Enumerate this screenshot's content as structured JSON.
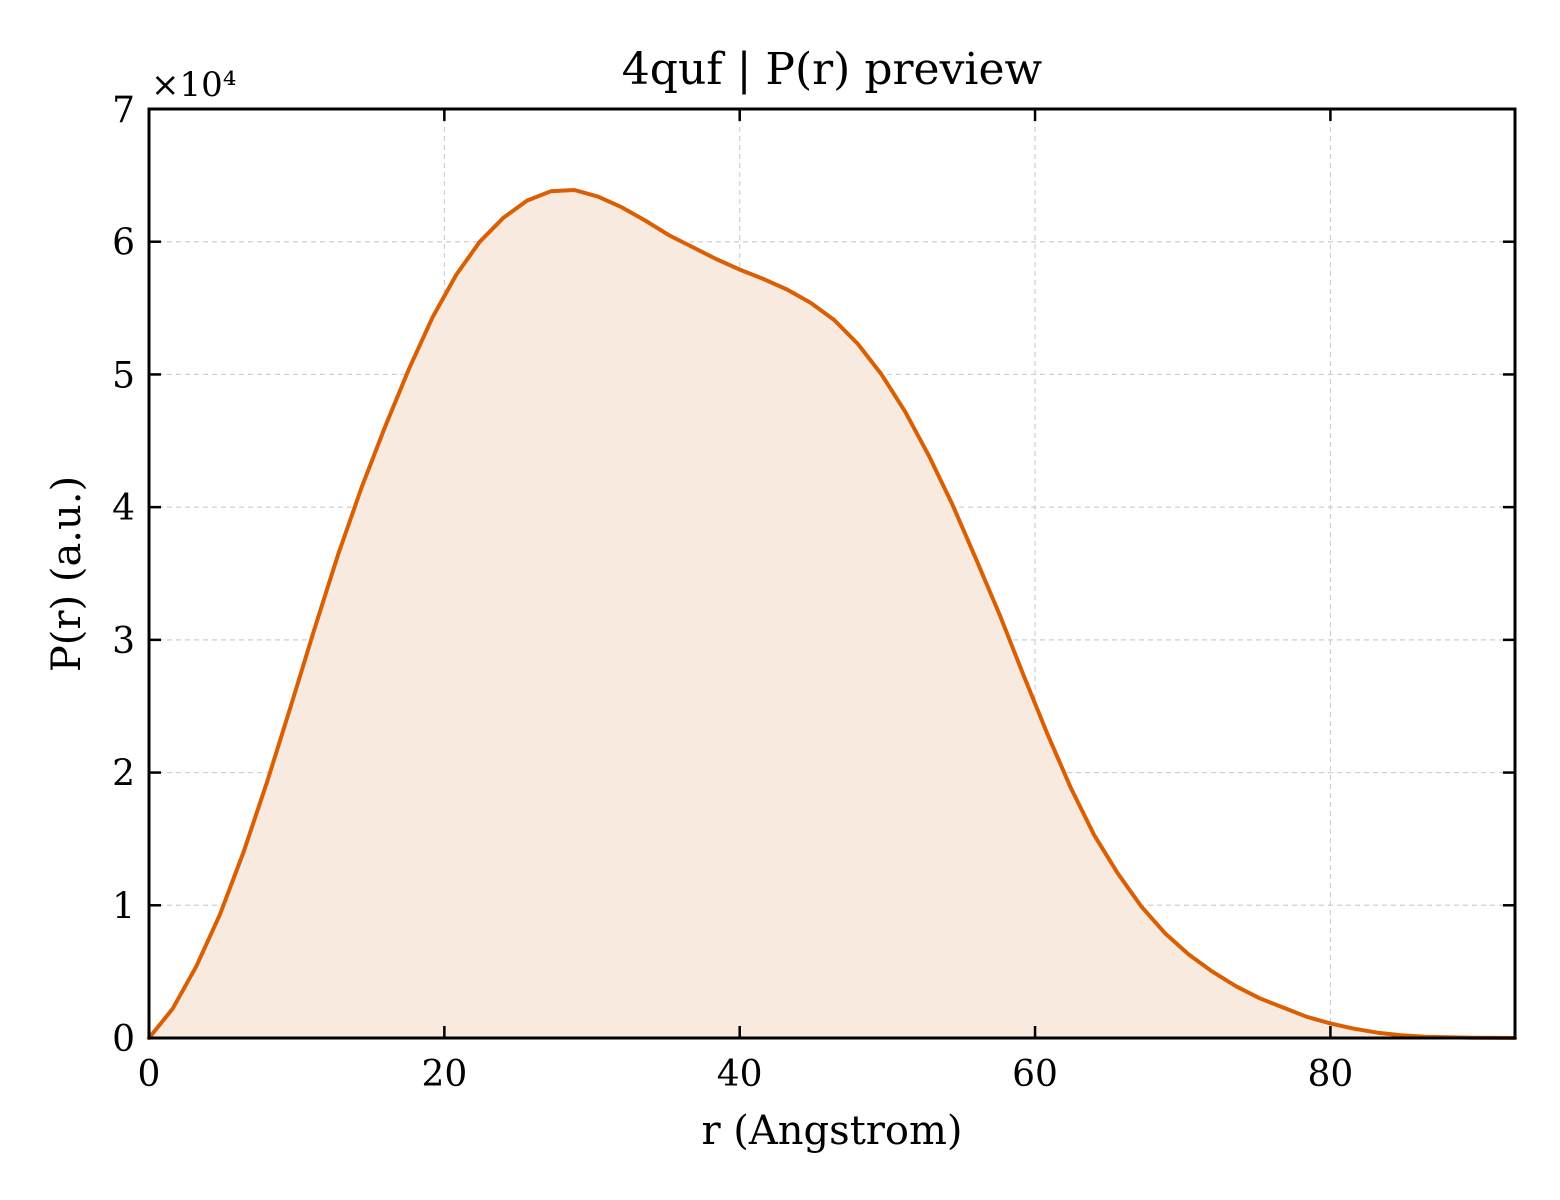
{
  "chart_data": {
    "type": "area",
    "title": "4quf | P(r) preview",
    "xlabel": "r (Angstrom)",
    "ylabel": "P(r) (a.u.)",
    "y_scale_label": "×10⁴",
    "xlim": [
      0,
      92.5
    ],
    "ylim": [
      0,
      70000
    ],
    "xticks": [
      0,
      20,
      40,
      60,
      80
    ],
    "yticks": [
      0,
      10000,
      20000,
      30000,
      40000,
      50000,
      60000,
      70000
    ],
    "xtick_labels": [
      "0",
      "20",
      "40",
      "60",
      "80"
    ],
    "ytick_labels": [
      "0",
      "1",
      "2",
      "3",
      "4",
      "5",
      "6",
      "7"
    ],
    "grid": true,
    "line_color": "#d95f02",
    "fill_color": "#f9eadf",
    "series": [
      {
        "x": [
          0,
          1.6,
          3.2,
          4.8,
          6.4,
          8.0,
          9.6,
          11.2,
          12.8,
          14.4,
          16.0,
          17.6,
          19.2,
          20.8,
          22.4,
          24.0,
          25.6,
          27.2,
          28.8,
          30.4,
          32.0,
          33.6,
          35.2,
          36.8,
          38.4,
          40.0,
          41.6,
          43.2,
          44.8,
          46.4,
          48.0,
          49.6,
          51.2,
          52.8,
          54.4,
          56.0,
          57.6,
          59.2,
          60.8,
          62.4,
          64.0,
          65.6,
          67.2,
          68.8,
          70.4,
          72.0,
          73.6,
          75.2,
          76.8,
          78.4,
          80.0,
          81.6,
          83.2,
          84.8,
          86.4,
          88.0,
          89.6,
          91.2,
          92.5
        ],
        "y": [
          0,
          2200,
          5400,
          9300,
          14000,
          19300,
          25000,
          30800,
          36400,
          41500,
          46100,
          50400,
          54300,
          57500,
          60000,
          61800,
          63100,
          63800,
          63900,
          63400,
          62600,
          61600,
          60500,
          59600,
          58700,
          57900,
          57200,
          56400,
          55400,
          54100,
          52300,
          50000,
          47200,
          43900,
          40200,
          36100,
          31900,
          27400,
          23000,
          18900,
          15300,
          12400,
          9900,
          7900,
          6300,
          5000,
          3900,
          3000,
          2300,
          1600,
          1100,
          700,
          400,
          200,
          100,
          50,
          20,
          10,
          0
        ]
      }
    ]
  }
}
